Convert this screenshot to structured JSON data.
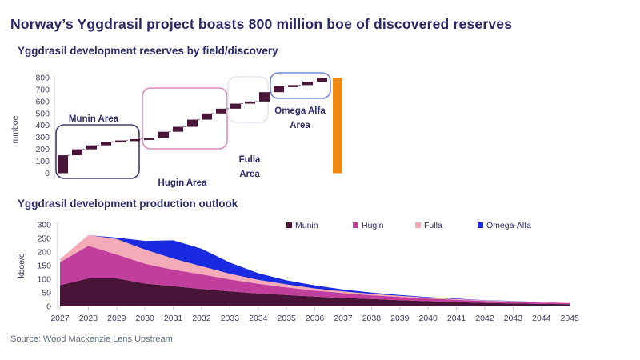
{
  "page": {
    "title": "Norway’s Yggdrasil project boasts 800 million boe of discovered reserves",
    "source": "Source: Wood Mackenzie Lens Upstream"
  },
  "colors": {
    "title_text": "#2a2767",
    "subtitle_text": "#2b2a6b",
    "tick_text": "#3f3d63",
    "source_text": "#5f6f85",
    "axis_line": "#c4c4d2",
    "waterfall_bar": "#481437",
    "waterfall_connector": "#8a7690",
    "total_bar": "#ef8912"
  },
  "chart_data": [
    {
      "type": "waterfall",
      "title": "Yggdrasil development reserves by field/discovery",
      "ylabel": "mmboe",
      "ylim": [
        0,
        800
      ],
      "ytick_step": 100,
      "bar_color": "#481437",
      "groups": [
        {
          "name": "Munin Area",
          "label_lines": [
            "Munin Area"
          ],
          "box_color": "#453a6b",
          "segments": [
            [
              0,
              150
            ],
            [
              150,
              200
            ],
            [
              200,
              233
            ],
            [
              233,
              263
            ],
            [
              263,
              274
            ],
            [
              274,
              285
            ]
          ]
        },
        {
          "name": "Hugin Area",
          "label_lines": [
            "Hugin Area"
          ],
          "box_color": "#d78cc6",
          "segments": [
            [
              285,
              295
            ],
            [
              295,
              347
            ],
            [
              347,
              388
            ],
            [
              388,
              448
            ],
            [
              448,
              500
            ],
            [
              500,
              540
            ]
          ]
        },
        {
          "name": "Fulla Area",
          "label_lines": [
            "Fulla",
            "Area"
          ],
          "box_color": "#e8e2ee",
          "segments": [
            [
              540,
              582
            ],
            [
              582,
              600
            ],
            [
              600,
              678
            ]
          ]
        },
        {
          "name": "Omega Alfa Area",
          "label_lines": [
            "Omega Alfa",
            "Area"
          ],
          "box_color": "#7487d8",
          "segments": [
            [
              678,
              727
            ],
            [
              727,
              737
            ],
            [
              737,
              766
            ],
            [
              766,
              800
            ]
          ]
        }
      ],
      "total": 800,
      "total_color": "#ef8912"
    },
    {
      "type": "area",
      "title": "Yggdrasil development production outlook",
      "ylabel": "kboe/d",
      "ylim": [
        0,
        300
      ],
      "ytick_step": 50,
      "x": [
        2027,
        2028,
        2029,
        2030,
        2031,
        2032,
        2033,
        2034,
        2035,
        2036,
        2037,
        2038,
        2039,
        2040,
        2041,
        2042,
        2043,
        2044,
        2045
      ],
      "legend_position": "top-right-inside",
      "series": [
        {
          "name": "Munin",
          "color": "#481437",
          "values": [
            78,
            103,
            103,
            84,
            74,
            64,
            55,
            48,
            42,
            36,
            31,
            27,
            23,
            19,
            16,
            13,
            11,
            9,
            8
          ]
        },
        {
          "name": "Hugin",
          "color": "#c23e9d",
          "values": [
            84,
            120,
            88,
            73,
            61,
            54,
            44,
            35,
            28,
            22,
            18,
            14,
            12,
            10,
            8,
            7,
            6,
            5,
            4
          ]
        },
        {
          "name": "Fulla",
          "color": "#f5aab8",
          "values": [
            12,
            39,
            57,
            52,
            41,
            30,
            21,
            15,
            11,
            8,
            6,
            5,
            4,
            3,
            3,
            2,
            2,
            1,
            1
          ]
        },
        {
          "name": "Omega-Alfa",
          "color": "#1a2ae0",
          "values": [
            0,
            0,
            5,
            32,
            67,
            64,
            41,
            24,
            15,
            11,
            7,
            5,
            3,
            2,
            2,
            1,
            1,
            1,
            0
          ]
        }
      ]
    }
  ]
}
